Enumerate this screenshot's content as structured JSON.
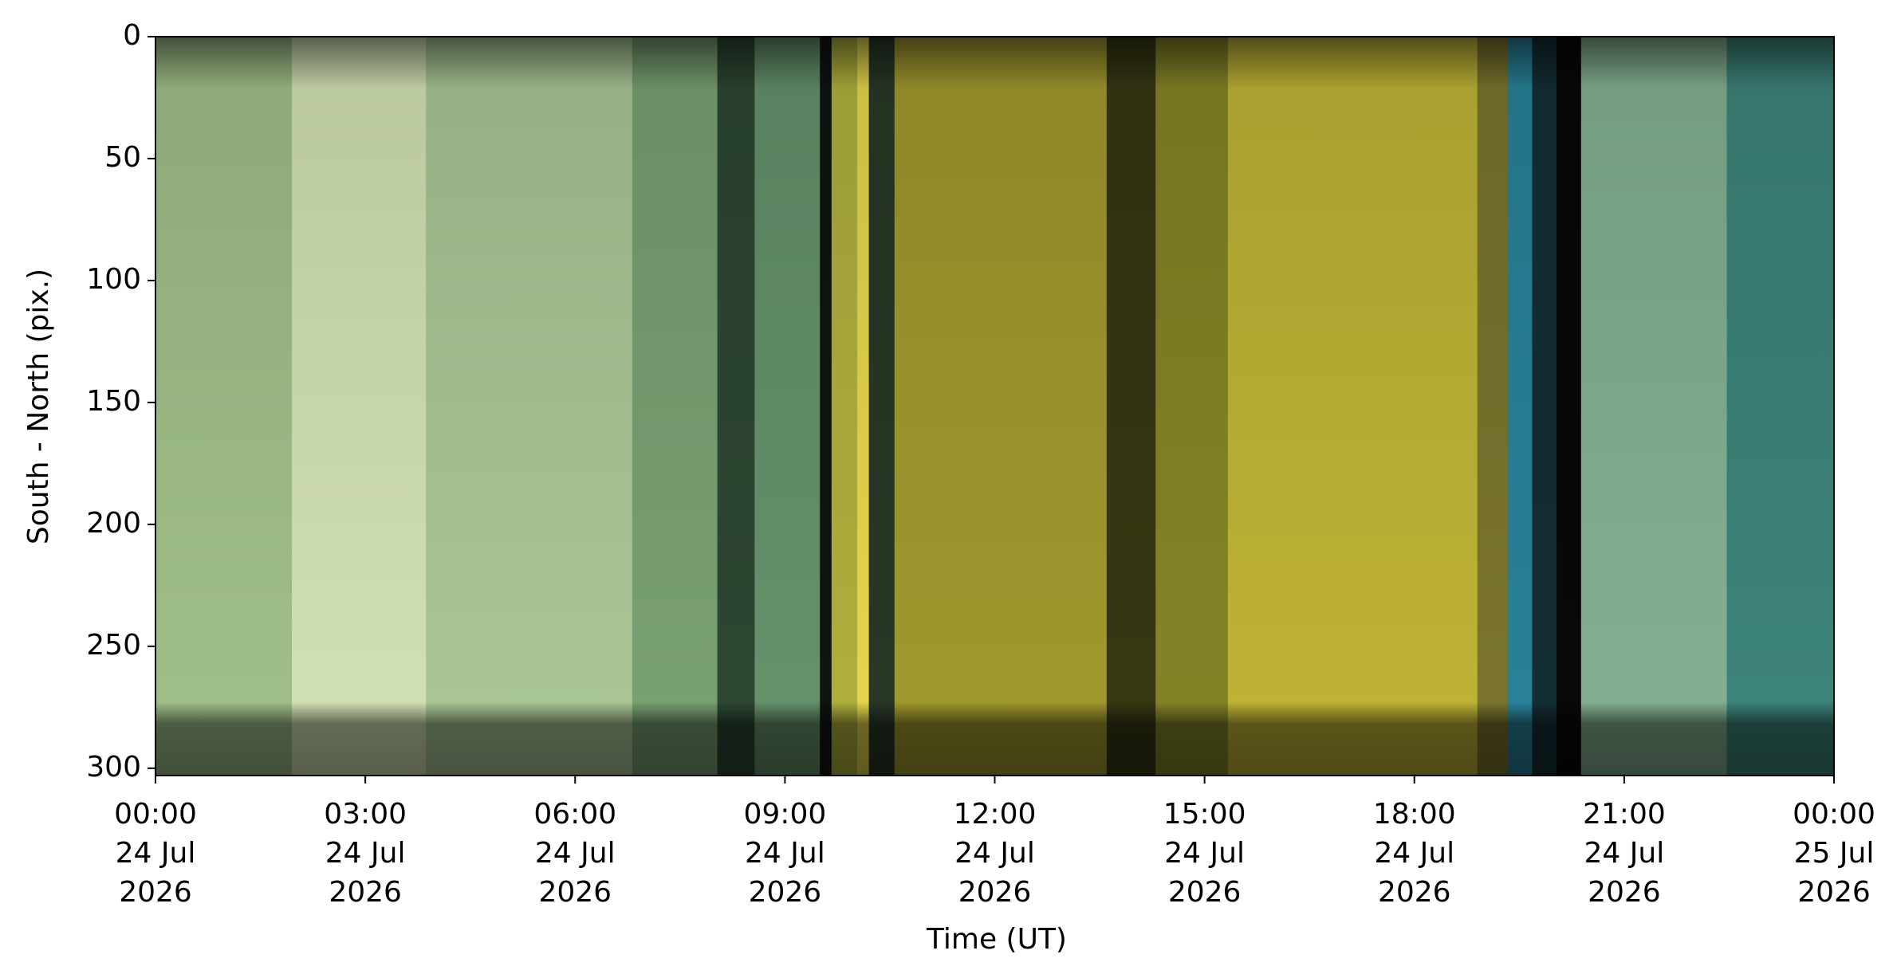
{
  "chart_data": {
    "type": "keogram",
    "xlabel": "Time (UT)",
    "ylabel": "South - North (pix.)",
    "xlim": [
      "2026-07-24T00:00",
      "2026-07-25T00:00"
    ],
    "xticks": [
      {
        "value": "2026-07-24T00:00",
        "label": [
          "00:00",
          "24 Jul",
          "2026"
        ]
      },
      {
        "value": "2026-07-24T03:00",
        "label": [
          "03:00",
          "24 Jul",
          "2026"
        ]
      },
      {
        "value": "2026-07-24T06:00",
        "label": [
          "06:00",
          "24 Jul",
          "2026"
        ]
      },
      {
        "value": "2026-07-24T09:00",
        "label": [
          "09:00",
          "24 Jul",
          "2026"
        ]
      },
      {
        "value": "2026-07-24T12:00",
        "label": [
          "12:00",
          "24 Jul",
          "2026"
        ]
      },
      {
        "value": "2026-07-24T15:00",
        "label": [
          "15:00",
          "24 Jul",
          "2026"
        ]
      },
      {
        "value": "2026-07-24T18:00",
        "label": [
          "18:00",
          "24 Jul",
          "2026"
        ]
      },
      {
        "value": "2026-07-24T21:00",
        "label": [
          "21:00",
          "24 Jul",
          "2026"
        ]
      },
      {
        "value": "2026-07-25T00:00",
        "label": [
          "00:00",
          "25 Jul",
          "2026"
        ]
      }
    ],
    "ylim": [
      0,
      303
    ],
    "y_inverted": true,
    "yticks": [
      0,
      50,
      100,
      150,
      200,
      250,
      300
    ],
    "columns": {
      "edges": [
        "2026-07-24T00:00",
        "2026-07-24T01:57",
        "2026-07-24T03:52",
        "2026-07-24T06:49",
        "2026-07-24T08:02",
        "2026-07-24T08:34",
        "2026-07-24T09:30",
        "2026-07-24T09:40",
        "2026-07-24T10:02",
        "2026-07-24T10:12",
        "2026-07-24T10:34",
        "2026-07-24T13:36",
        "2026-07-24T14:18",
        "2026-07-24T15:20",
        "2026-07-24T18:54",
        "2026-07-24T19:20",
        "2026-07-24T19:41",
        "2026-07-24T20:02",
        "2026-07-24T20:23",
        "2026-07-24T22:28",
        "2026-07-25T00:00"
      ],
      "colors": [
        "#a8c890",
        "#dcecbc",
        "#b2d09e",
        "#7fa878",
        "#2f4a35",
        "#6a9870",
        "#101510",
        "#b8b840",
        "#f0e050",
        "#2a3a28",
        "#a8a030",
        "#3a3a15",
        "#8a8a28",
        "#c8bc38",
        "#807a30",
        "#2a88a0",
        "#153038",
        "#080808",
        "#8ab898",
        "#3f8a80"
      ]
    }
  }
}
